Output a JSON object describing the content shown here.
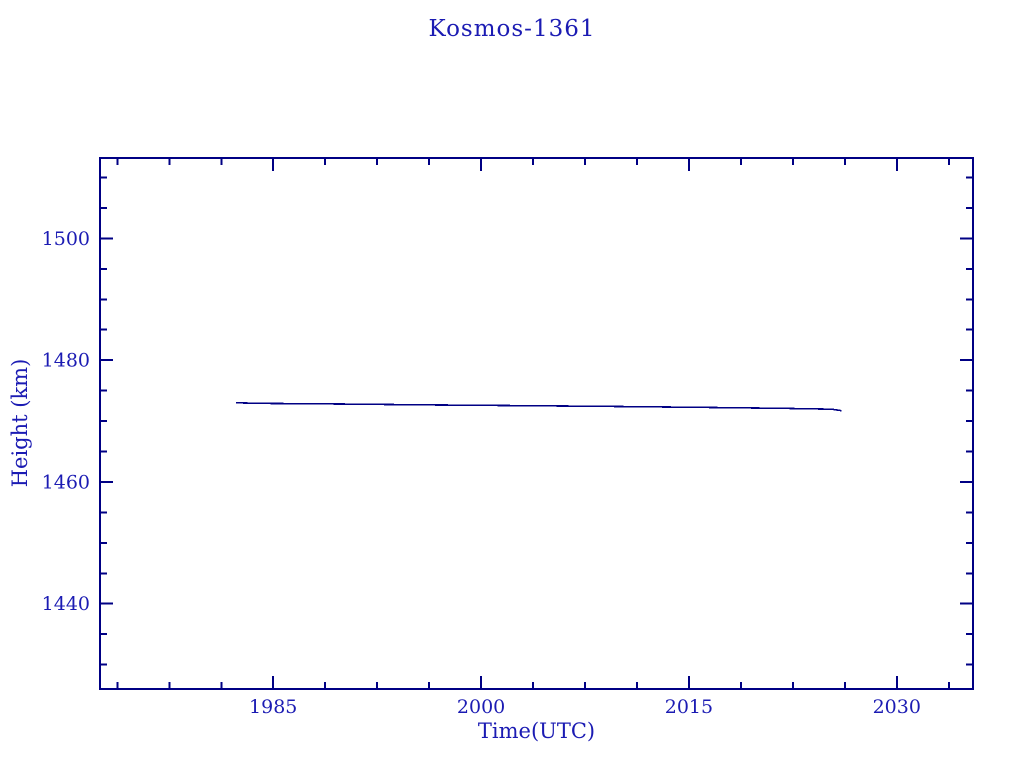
{
  "page": {
    "background": "#ffffff"
  },
  "chart_data": {
    "type": "line",
    "title": "Kosmos-1361",
    "xlabel": "Time(UTC)",
    "ylabel": "Height (km)",
    "xlim": [
      1972.5,
      2035.5
    ],
    "ylim": [
      1426.0,
      1513.2
    ],
    "x_ticks": [
      1985,
      2000,
      2015,
      2030
    ],
    "y_ticks": [
      1440,
      1460,
      1480,
      1500
    ],
    "x_minor_step": 3.75,
    "x_major_step": 15,
    "y_minor_step": 5,
    "y_major_step": 20,
    "grid": false,
    "legend_position": "none",
    "colors": {
      "axis": "#000084",
      "line": "#000084",
      "text": "#1b1bb3",
      "background": "#ffffff"
    },
    "series": [
      {
        "name": "orbital-height",
        "color": "#000084",
        "points": [
          [
            1982.3,
            1473.0
          ],
          [
            1984.3,
            1472.9
          ],
          [
            1989.8,
            1472.8
          ],
          [
            1996.2,
            1472.65
          ],
          [
            2001.6,
            1472.55
          ],
          [
            2009.2,
            1472.4
          ],
          [
            2016.1,
            1472.25
          ],
          [
            2021.6,
            1472.1
          ],
          [
            2025.3,
            1471.95
          ],
          [
            2026.0,
            1471.7
          ]
        ]
      }
    ]
  }
}
